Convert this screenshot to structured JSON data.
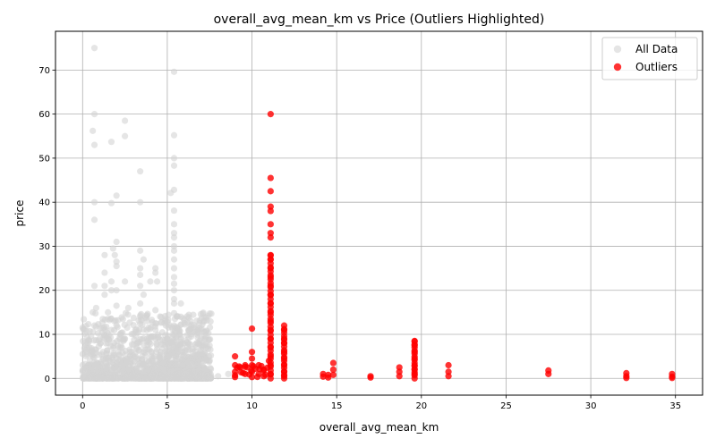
{
  "chart_data": {
    "type": "scatter",
    "title": "overall_avg_mean_km vs Price (Outliers Highlighted)",
    "xlabel": "overall_avg_mean_km",
    "ylabel": "price",
    "xlim": [
      -1.6,
      36.6
    ],
    "ylim": [
      -3.8,
      78.8
    ],
    "xticks": [
      0,
      5,
      10,
      15,
      20,
      25,
      30,
      35
    ],
    "yticks": [
      0,
      10,
      20,
      30,
      40,
      50,
      60,
      70
    ],
    "grid": true,
    "legend_position": "top-right",
    "colors": {
      "all_data": "#d3d3d3",
      "outliers": "#ff0000"
    },
    "series": [
      {
        "name": "All Data",
        "points": [
          [
            0.7,
            75
          ],
          [
            5.4,
            69.6
          ],
          [
            0.7,
            60
          ],
          [
            2.5,
            58.5
          ],
          [
            0.6,
            56.2
          ],
          [
            2.5,
            55
          ],
          [
            5.4,
            55.2
          ],
          [
            1.7,
            53.7
          ],
          [
            0.7,
            53
          ],
          [
            5.4,
            50
          ],
          [
            5.4,
            48.3
          ],
          [
            3.4,
            47
          ],
          [
            5.4,
            42.8
          ],
          [
            5.2,
            42.1
          ],
          [
            2.0,
            41.5
          ],
          [
            0.7,
            40
          ],
          [
            1.7,
            39.8
          ],
          [
            3.4,
            40
          ],
          [
            5.4,
            38.1
          ],
          [
            0.7,
            36
          ],
          [
            5.4,
            35
          ],
          [
            5.4,
            33
          ],
          [
            5.4,
            32
          ],
          [
            2.0,
            31
          ],
          [
            5.4,
            30
          ],
          [
            1.8,
            29.5
          ],
          [
            3.4,
            29
          ],
          [
            5.4,
            29
          ],
          [
            1.3,
            28
          ],
          [
            1.9,
            28
          ],
          [
            3.6,
            27
          ],
          [
            5.4,
            27
          ],
          [
            2.0,
            26.5
          ],
          [
            2.0,
            25.5
          ],
          [
            4.3,
            25
          ],
          [
            3.4,
            25
          ],
          [
            5.4,
            25
          ],
          [
            4.3,
            24
          ],
          [
            1.3,
            24
          ],
          [
            5.4,
            23
          ],
          [
            3.4,
            23.5
          ],
          [
            2.5,
            22
          ],
          [
            4.0,
            22
          ],
          [
            4.4,
            22
          ],
          [
            1.7,
            22
          ],
          [
            5.4,
            21.5
          ],
          [
            0.7,
            21
          ],
          [
            1.3,
            21
          ],
          [
            3.4,
            21
          ],
          [
            1.7,
            20
          ],
          [
            2.0,
            20
          ],
          [
            5.4,
            20
          ],
          [
            3.6,
            19
          ],
          [
            1.3,
            19
          ],
          [
            5.4,
            18
          ],
          [
            3.4,
            17
          ],
          [
            5.4,
            17
          ],
          [
            5.8,
            17
          ],
          [
            2.0,
            16.5
          ],
          [
            0.8,
            16
          ],
          [
            2.7,
            16
          ],
          [
            4.3,
            15.5
          ],
          [
            0.6,
            15
          ],
          [
            1.5,
            15
          ],
          [
            5.4,
            14.8
          ],
          [
            5.8,
            14
          ],
          [
            3.4,
            14
          ],
          [
            1.5,
            13.5
          ],
          [
            5.4,
            12
          ],
          [
            2.0,
            12
          ],
          [
            0.7,
            12
          ],
          [
            1.7,
            11
          ],
          [
            4.3,
            11
          ],
          [
            5.4,
            10
          ],
          [
            0.3,
            8
          ],
          [
            1.0,
            9
          ],
          [
            2.5,
            9
          ],
          [
            3.8,
            9
          ],
          [
            5.0,
            9
          ],
          [
            6.0,
            8
          ],
          [
            7.2,
            9
          ],
          [
            7.2,
            7.5
          ],
          [
            6.5,
            6
          ],
          [
            7.2,
            6
          ],
          [
            0.2,
            6
          ],
          [
            0.2,
            5
          ],
          [
            0.4,
            7
          ],
          [
            1.2,
            6
          ],
          [
            1.6,
            4
          ],
          [
            2.2,
            7
          ],
          [
            2.8,
            5
          ],
          [
            3.2,
            8
          ],
          [
            3.6,
            6
          ],
          [
            4.1,
            4
          ],
          [
            4.6,
            6
          ],
          [
            5.1,
            5
          ],
          [
            5.5,
            7
          ],
          [
            5.9,
            3
          ],
          [
            6.3,
            2
          ],
          [
            6.8,
            3
          ],
          [
            7.2,
            4
          ],
          [
            7.2,
            2
          ],
          [
            8.0,
            0.5
          ],
          [
            8.6,
            1
          ],
          [
            0.5,
            2
          ],
          [
            0.9,
            3
          ],
          [
            1.4,
            2
          ],
          [
            1.9,
            1
          ],
          [
            2.3,
            3
          ],
          [
            2.7,
            2
          ],
          [
            3.1,
            1
          ],
          [
            3.5,
            3
          ],
          [
            3.9,
            2
          ],
          [
            4.3,
            1
          ],
          [
            4.8,
            2
          ],
          [
            5.2,
            3
          ],
          [
            5.6,
            1
          ],
          [
            6.1,
            1
          ],
          [
            6.6,
            0.5
          ],
          [
            7.0,
            1
          ],
          [
            0.4,
            0.5
          ],
          [
            1.1,
            0.3
          ],
          [
            1.8,
            0.5
          ],
          [
            2.6,
            0.4
          ],
          [
            3.3,
            0.3
          ],
          [
            4.0,
            0.5
          ],
          [
            4.7,
            0.2
          ],
          [
            5.5,
            0.4
          ],
          [
            6.4,
            0.3
          ],
          [
            7.5,
            0.3
          ]
        ]
      },
      {
        "name": "Outliers",
        "points": [
          [
            11.1,
            60
          ],
          [
            11.1,
            45.5
          ],
          [
            11.1,
            42.5
          ],
          [
            11.1,
            39
          ],
          [
            11.1,
            38
          ],
          [
            11.1,
            35
          ],
          [
            11.1,
            33
          ],
          [
            11.1,
            32
          ],
          [
            11.1,
            28
          ],
          [
            11.1,
            27
          ],
          [
            11.1,
            25
          ],
          [
            11.1,
            23
          ],
          [
            11.1,
            21
          ],
          [
            11.1,
            19
          ],
          [
            11.1,
            17
          ],
          [
            11.1,
            15
          ],
          [
            11.1,
            13
          ],
          [
            11.1,
            11
          ],
          [
            11.1,
            9
          ],
          [
            11.1,
            7
          ],
          [
            11.1,
            5
          ],
          [
            11.1,
            3
          ],
          [
            11.1,
            1
          ],
          [
            10.0,
            11.3
          ],
          [
            10.0,
            6
          ],
          [
            10.0,
            4.5
          ],
          [
            10.0,
            3
          ],
          [
            10.0,
            1.5
          ],
          [
            10.0,
            0.3
          ],
          [
            9.0,
            5
          ],
          [
            9.0,
            3
          ],
          [
            9.0,
            1.5
          ],
          [
            9.0,
            0.3
          ],
          [
            9.3,
            2.5
          ],
          [
            9.6,
            3
          ],
          [
            9.6,
            1
          ],
          [
            10.4,
            3
          ],
          [
            10.4,
            1
          ],
          [
            10.7,
            2
          ],
          [
            10.7,
            0.5
          ],
          [
            11.0,
            4
          ],
          [
            11.9,
            12
          ],
          [
            11.9,
            11
          ],
          [
            11.9,
            9
          ],
          [
            11.9,
            8
          ],
          [
            11.9,
            6
          ],
          [
            11.9,
            4.5
          ],
          [
            11.9,
            3
          ],
          [
            11.9,
            1.5
          ],
          [
            11.9,
            0.5
          ],
          [
            14.2,
            1
          ],
          [
            14.2,
            0.4
          ],
          [
            14.5,
            0.8
          ],
          [
            14.5,
            0.2
          ],
          [
            14.8,
            3.5
          ],
          [
            14.8,
            2
          ],
          [
            14.8,
            0.8
          ],
          [
            17.0,
            0.5
          ],
          [
            17.0,
            0.2
          ],
          [
            18.7,
            2.5
          ],
          [
            18.7,
            1.5
          ],
          [
            18.7,
            0.5
          ],
          [
            19.6,
            8.5
          ],
          [
            19.6,
            7.5
          ],
          [
            19.6,
            6
          ],
          [
            19.6,
            4.5
          ],
          [
            19.6,
            3
          ],
          [
            19.6,
            2
          ],
          [
            19.6,
            1
          ],
          [
            21.6,
            3
          ],
          [
            21.6,
            1.5
          ],
          [
            21.6,
            0.5
          ],
          [
            27.5,
            1.8
          ],
          [
            27.5,
            1
          ],
          [
            32.1,
            1.2
          ],
          [
            32.1,
            0.5
          ],
          [
            32.1,
            0.1
          ],
          [
            34.8,
            1
          ],
          [
            34.8,
            0.4
          ],
          [
            34.8,
            0.1
          ]
        ]
      }
    ]
  }
}
